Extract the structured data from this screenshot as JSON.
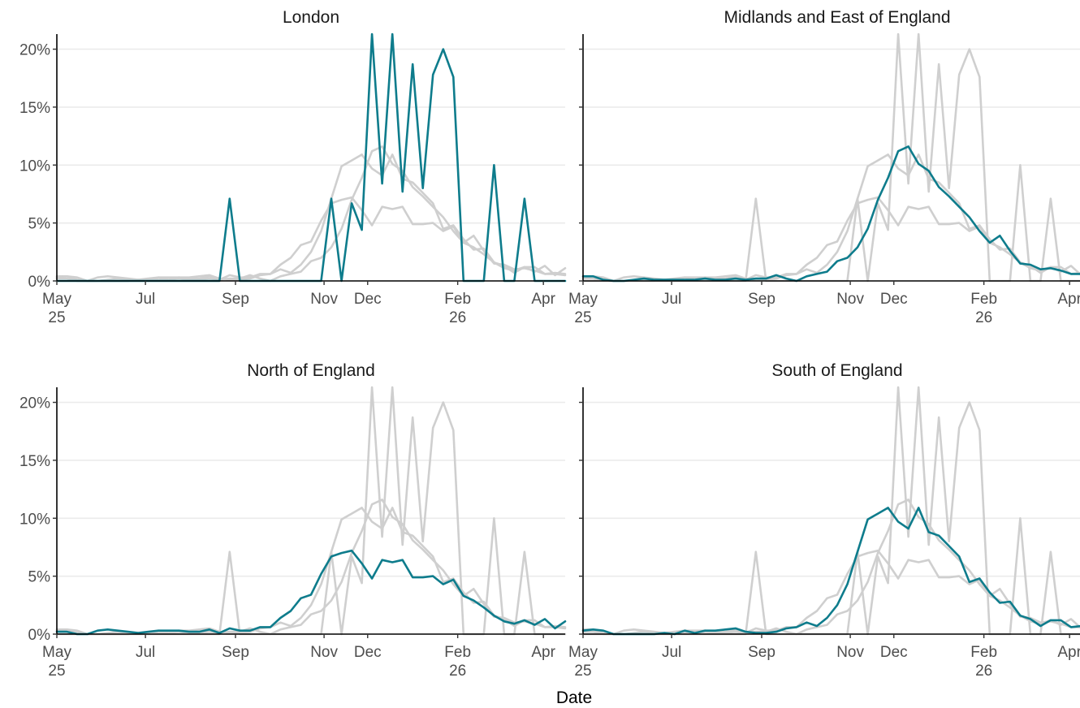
{
  "chart_data": {
    "type": "line",
    "xlabel": "Date",
    "ylabel": "",
    "ylim": [
      0,
      21.3
    ],
    "grid": "horizontal major",
    "start_date": "2025-05-01",
    "x_ticks": [
      {
        "date": "2025-05-01",
        "label": [
          "May",
          "25"
        ]
      },
      {
        "date": "2025-07-01",
        "label": [
          "Jul"
        ]
      },
      {
        "date": "2025-09-01",
        "label": [
          "Sep"
        ]
      },
      {
        "date": "2025-11-01",
        "label": [
          "Nov"
        ]
      },
      {
        "date": "2025-12-01",
        "label": [
          "Dec"
        ]
      },
      {
        "date": "2026-02-01",
        "label": [
          "Feb",
          "26"
        ]
      },
      {
        "date": "2026-04-01",
        "label": [
          "Apr"
        ]
      }
    ],
    "y_ticks": [
      {
        "value": 0,
        "label": "0%"
      },
      {
        "value": 5,
        "label": "5%"
      },
      {
        "value": 10,
        "label": "10%"
      },
      {
        "value": 15,
        "label": "15%"
      },
      {
        "value": 20,
        "label": "20%"
      }
    ],
    "colors": {
      "highlight": "#0e7c8c",
      "background": "#cfcfcf"
    },
    "x": [
      "2025-05-01",
      "2025-05-08",
      "2025-05-15",
      "2025-05-22",
      "2025-05-29",
      "2025-06-05",
      "2025-06-12",
      "2025-06-19",
      "2025-06-26",
      "2025-07-03",
      "2025-07-10",
      "2025-07-17",
      "2025-07-24",
      "2025-07-31",
      "2025-08-07",
      "2025-08-14",
      "2025-08-21",
      "2025-08-28",
      "2025-09-04",
      "2025-09-11",
      "2025-09-18",
      "2025-09-25",
      "2025-10-02",
      "2025-10-09",
      "2025-10-16",
      "2025-10-23",
      "2025-10-30",
      "2025-11-06",
      "2025-11-13",
      "2025-11-20",
      "2025-11-27",
      "2025-12-04",
      "2025-12-11",
      "2025-12-18",
      "2025-12-25",
      "2026-01-01",
      "2026-01-08",
      "2026-01-15",
      "2026-01-22",
      "2026-01-29",
      "2026-02-05",
      "2026-02-12",
      "2026-02-19",
      "2026-02-26",
      "2026-03-05",
      "2026-03-12",
      "2026-03-19",
      "2026-03-26",
      "2026-04-02",
      "2026-04-09",
      "2026-04-16"
    ],
    "panels": [
      {
        "title": "London",
        "values": [
          0,
          0,
          0,
          0,
          0,
          0,
          0,
          0,
          0,
          0,
          0,
          0,
          0,
          0,
          0,
          0,
          0,
          7.1,
          0,
          0,
          0,
          0,
          0,
          0,
          0,
          0,
          0,
          7.1,
          0,
          6.7,
          4.4,
          21.3,
          8.4,
          21.3,
          7.7,
          18.7,
          8,
          17.8,
          20,
          17.6,
          0,
          0,
          0,
          10,
          0,
          0,
          7.1,
          0,
          0,
          0,
          0
        ]
      },
      {
        "title": "Midlands and East of England",
        "values": [
          0.4,
          0.4,
          0.1,
          0,
          0,
          0.1,
          0.2,
          0.1,
          0.1,
          0.1,
          0.1,
          0.1,
          0.2,
          0.1,
          0.1,
          0.2,
          0.1,
          0.2,
          0.2,
          0.5,
          0.2,
          0,
          0.4,
          0.6,
          0.8,
          1.7,
          2,
          2.9,
          4.5,
          7,
          8.9,
          11.2,
          11.6,
          10.1,
          9.5,
          8.1,
          7.3,
          6.4,
          5.5,
          4.3,
          3.3,
          3.9,
          2.6,
          1.5,
          1.4,
          1,
          1.1,
          0.9,
          0.6,
          0.6,
          0.5
        ]
      },
      {
        "title": "North of England",
        "values": [
          0.2,
          0.2,
          0,
          0,
          0.3,
          0.4,
          0.3,
          0.2,
          0.1,
          0.2,
          0.3,
          0.3,
          0.3,
          0.2,
          0.2,
          0.4,
          0.1,
          0.5,
          0.3,
          0.3,
          0.6,
          0.6,
          1.4,
          2,
          3.1,
          3.4,
          5.2,
          6.7,
          7,
          7.2,
          6.1,
          4.8,
          6.4,
          6.2,
          6.4,
          4.9,
          4.9,
          5,
          4.3,
          4.7,
          3.3,
          2.9,
          2.3,
          1.6,
          1.1,
          0.9,
          1.2,
          0.8,
          1.3,
          0.5,
          1.1
        ]
      },
      {
        "title": "South of England",
        "values": [
          0.3,
          0.4,
          0.3,
          0,
          0,
          0,
          0,
          0,
          0.1,
          0,
          0.3,
          0.1,
          0.3,
          0.3,
          0.4,
          0.5,
          0.2,
          0.1,
          0.1,
          0.2,
          0.5,
          0.6,
          1,
          0.7,
          1.4,
          2.5,
          4.3,
          7.1,
          9.9,
          10.4,
          10.9,
          9.7,
          9.1,
          10.9,
          8.8,
          8.5,
          7.6,
          6.7,
          4.5,
          4.8,
          3.6,
          2.7,
          2.8,
          1.6,
          1.3,
          0.7,
          1.2,
          1.2,
          0.6,
          0.7,
          0.6
        ]
      }
    ]
  }
}
